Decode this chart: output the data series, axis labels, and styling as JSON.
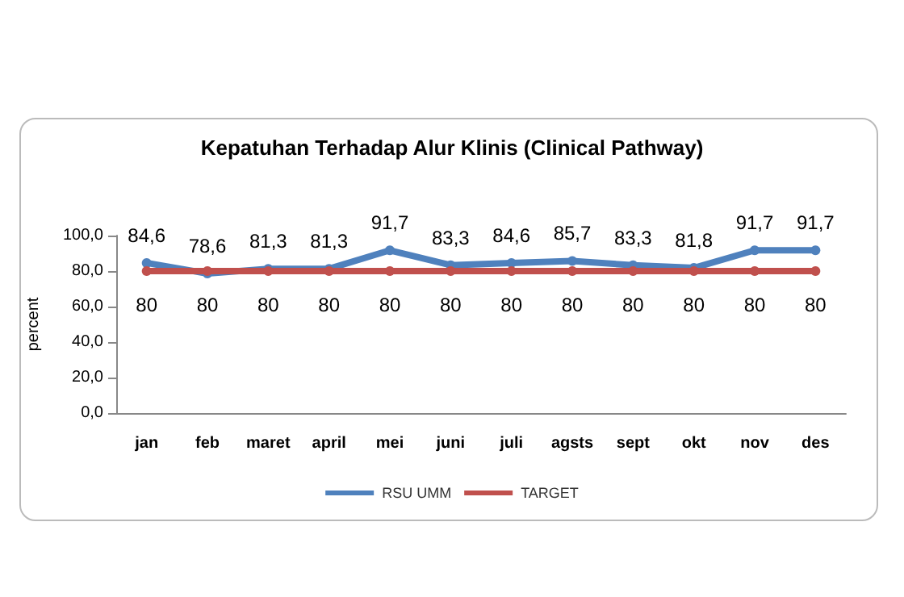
{
  "chart_data": {
    "type": "line",
    "title": "Kepatuhan Terhadap Alur Klinis (Clinical Pathway)",
    "ylabel": "percent",
    "categories": [
      "jan",
      "feb",
      "maret",
      "april",
      "mei",
      "juni",
      "juli",
      "agsts",
      "sept",
      "okt",
      "nov",
      "des"
    ],
    "series": [
      {
        "name": "RSU UMM",
        "color": "#4f81bd",
        "values": [
          84.6,
          78.6,
          81.3,
          81.3,
          91.7,
          83.3,
          84.6,
          85.7,
          83.3,
          81.8,
          91.7,
          91.7
        ],
        "value_labels": [
          "84,6",
          "78,6",
          "81,3",
          "81,3",
          "91,7",
          "83,3",
          "84,6",
          "85,7",
          "83,3",
          "81,8",
          "91,7",
          "91,7"
        ]
      },
      {
        "name": "TARGET",
        "color": "#c0504d",
        "values": [
          80,
          80,
          80,
          80,
          80,
          80,
          80,
          80,
          80,
          80,
          80,
          80
        ],
        "value_labels": [
          "80",
          "80",
          "80",
          "80",
          "80",
          "80",
          "80",
          "80",
          "80",
          "80",
          "80",
          "80"
        ]
      }
    ],
    "ylim": [
      0,
      100
    ],
    "yticks": [
      {
        "value": 0,
        "label": "0,0"
      },
      {
        "value": 20,
        "label": "20,0"
      },
      {
        "value": 40,
        "label": "40,0"
      },
      {
        "value": 60,
        "label": "60,0"
      },
      {
        "value": 80,
        "label": "80,0"
      },
      {
        "value": 100,
        "label": "100,0"
      }
    ],
    "grid": false,
    "legend": "bottom",
    "marker": "circle",
    "line_style": "solid"
  }
}
